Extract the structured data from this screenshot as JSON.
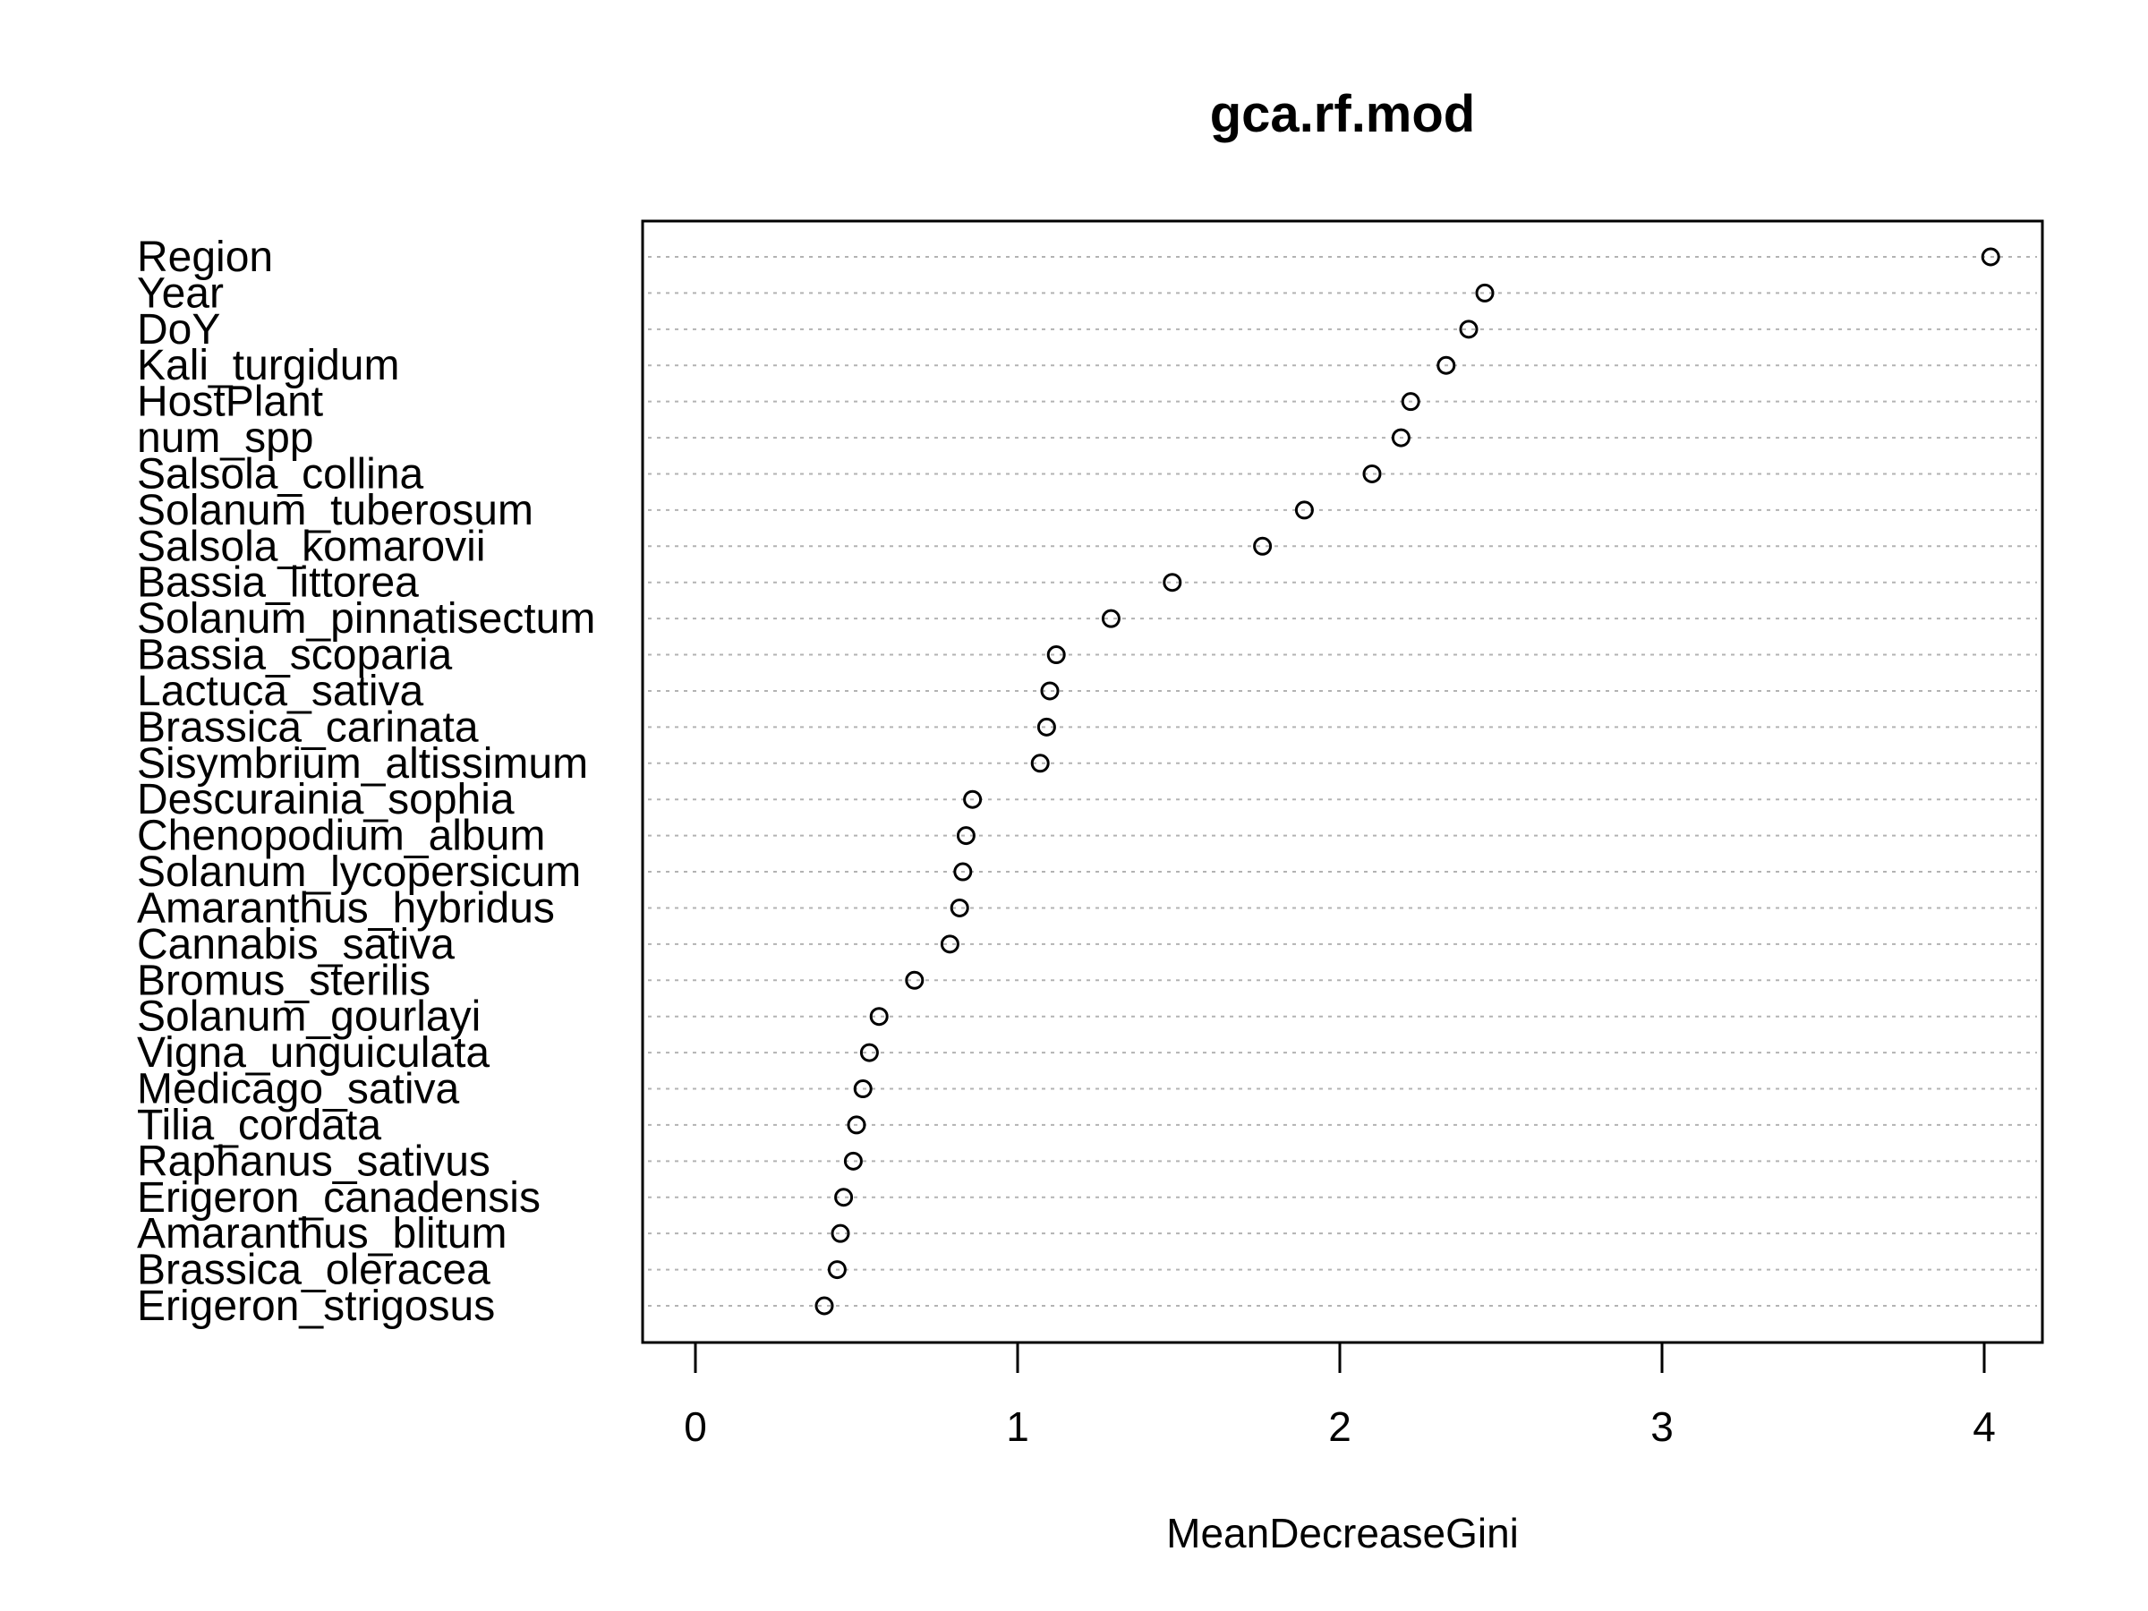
{
  "chart_data": {
    "type": "scatter",
    "title": "gca.rf.mod",
    "xlabel": "MeanDecreaseGini",
    "ylabel": "",
    "xlim": [
      0,
      4
    ],
    "xticks": [
      0,
      1,
      2,
      3,
      4
    ],
    "grid": "dotted horizontal lines per variable",
    "categories": [
      "Region",
      "Year",
      "DoY",
      "Kali_turgidum",
      "HostPlant",
      "num_spp",
      "Salsola_collina",
      "Solanum_tuberosum",
      "Salsola_komarovii",
      "Bassia_littorea",
      "Solanum_pinnatisectum",
      "Bassia_scoparia",
      "Lactuca_sativa",
      "Brassica_carinata",
      "Sisymbrium_altissimum",
      "Descurainia_sophia",
      "Chenopodium_album",
      "Solanum_lycopersicum",
      "Amaranthus_hybridus",
      "Cannabis_sativa",
      "Bromus_sterilis",
      "Solanum_gourlayi",
      "Vigna_unguiculata",
      "Medicago_sativa",
      "Tilia_cordata",
      "Raphanus_sativus",
      "Erigeron_canadensis",
      "Amaranthus_blitum",
      "Brassica_oleracea",
      "Erigeron_strigosus"
    ],
    "values": [
      4.02,
      2.45,
      2.4,
      2.33,
      2.22,
      2.19,
      2.1,
      1.89,
      1.76,
      1.48,
      1.29,
      1.12,
      1.1,
      1.09,
      1.07,
      0.86,
      0.84,
      0.83,
      0.82,
      0.79,
      0.68,
      0.57,
      0.54,
      0.52,
      0.5,
      0.49,
      0.46,
      0.45,
      0.44,
      0.4
    ]
  }
}
